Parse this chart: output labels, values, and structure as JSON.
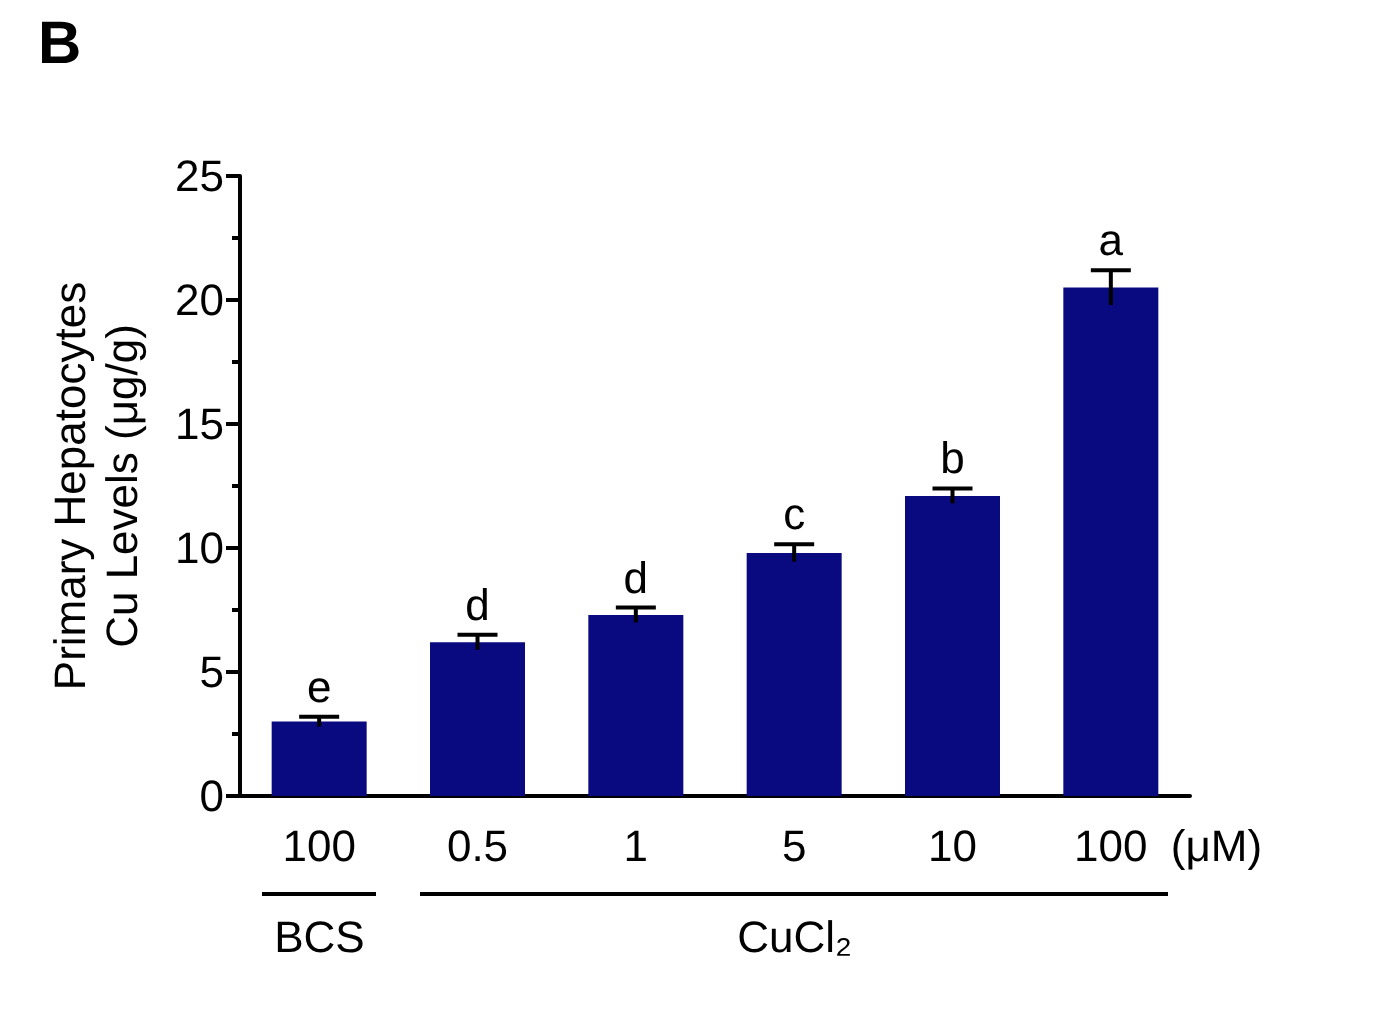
{
  "chart_data": {
    "type": "bar",
    "title": "B",
    "ylabel": "Primary Hepatocytes\nCu Levels (μg/g)",
    "xlabel": "(μM)",
    "categories": [
      "100",
      "0.5",
      "1",
      "5",
      "10",
      "100"
    ],
    "values": [
      3.0,
      6.2,
      7.3,
      9.8,
      12.1,
      20.5
    ],
    "errors": [
      0.2,
      0.3,
      0.3,
      0.35,
      0.3,
      0.7
    ],
    "color": "#0a0a80",
    "ylim": [
      0,
      25
    ],
    "yticks": [
      0,
      5,
      10,
      15,
      20,
      25
    ],
    "grid": false,
    "annotations": [
      "e",
      "d",
      "d",
      "c",
      "b",
      "a",
      "BCS",
      "CuCl₂"
    ]
  }
}
